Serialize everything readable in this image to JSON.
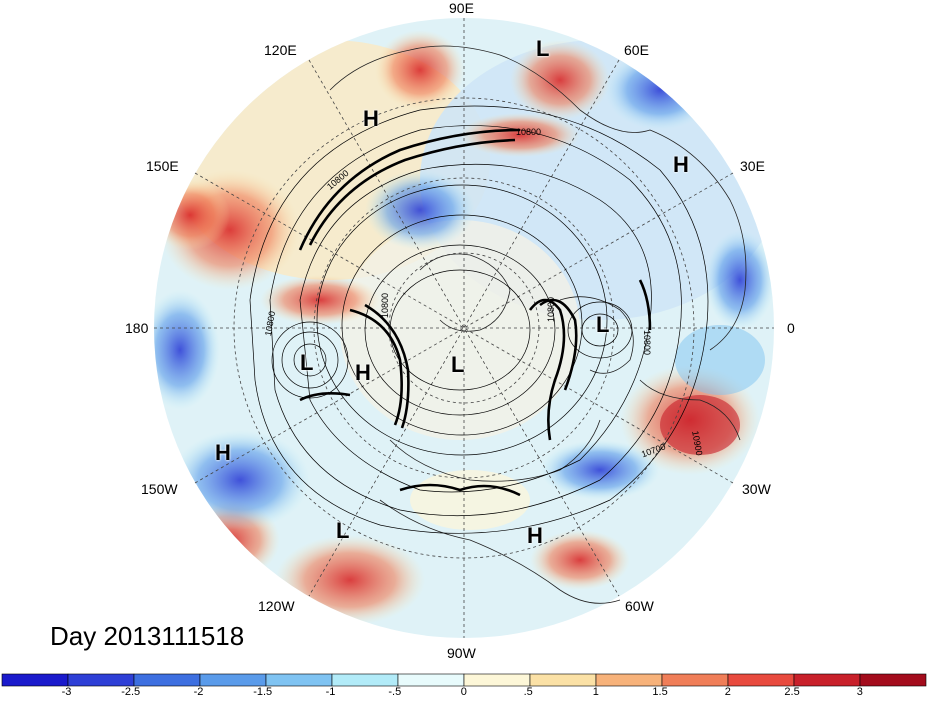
{
  "title": "Day 2013111518",
  "projection": "north-polar-stereographic",
  "longitude_labels": [
    {
      "name": "lon-90e",
      "text": "90E"
    },
    {
      "name": "lon-120e",
      "text": "120E"
    },
    {
      "name": "lon-60e",
      "text": "60E"
    },
    {
      "name": "lon-150e",
      "text": "150E"
    },
    {
      "name": "lon-30e",
      "text": "30E"
    },
    {
      "name": "lon-180",
      "text": "180"
    },
    {
      "name": "lon-0",
      "text": "0"
    },
    {
      "name": "lon-150w",
      "text": "150W"
    },
    {
      "name": "lon-30w",
      "text": "30W"
    },
    {
      "name": "lon-120w",
      "text": "120W"
    },
    {
      "name": "lon-60w",
      "text": "60W"
    },
    {
      "name": "lon-90w",
      "text": "90W"
    }
  ],
  "pressure_systems": [
    {
      "type": "L",
      "text": "L"
    },
    {
      "type": "H",
      "text": "H"
    },
    {
      "type": "H",
      "text": "H"
    },
    {
      "type": "L",
      "text": "L"
    },
    {
      "type": "H",
      "text": "H"
    },
    {
      "type": "L",
      "text": "L"
    },
    {
      "type": "L",
      "text": "L"
    },
    {
      "type": "H",
      "text": "H"
    },
    {
      "type": "L",
      "text": "L"
    },
    {
      "type": "H",
      "text": "H"
    }
  ],
  "contour_labels": [
    "10800",
    "10800",
    "10800",
    "10800",
    "10800",
    "10700",
    "10800",
    "10900"
  ],
  "colorbar": {
    "colors": [
      "#1a1acc",
      "#2e3fd6",
      "#3d6fe0",
      "#5a9bea",
      "#7fc3f2",
      "#b2ebf8",
      "#e8fbfc",
      "#fdf7d8",
      "#fbe1a6",
      "#f7b27a",
      "#f07e58",
      "#e84a3e",
      "#c8202a",
      "#a30c1c"
    ],
    "ticks": [
      "-3",
      "-2.5",
      "-2",
      "-1.5",
      "-1",
      "-.5",
      "0",
      ".5",
      "1",
      "1.5",
      "2",
      "2.5",
      "3"
    ]
  }
}
